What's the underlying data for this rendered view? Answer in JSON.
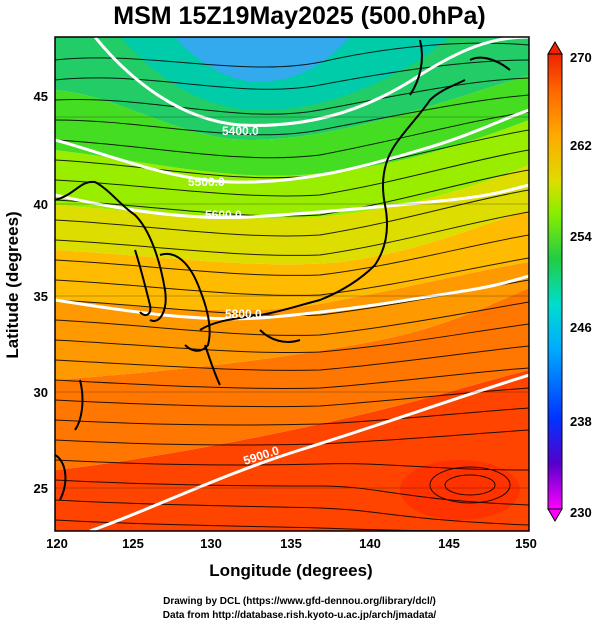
{
  "title": "MSM 15Z19May2025 (500.0hPa)",
  "xaxis": {
    "label": "Longitude (degrees)",
    "ticks": [
      "120",
      "125",
      "130",
      "135",
      "140",
      "145",
      "150"
    ],
    "range": [
      120,
      150
    ]
  },
  "yaxis": {
    "label": "Latitude  (degrees)",
    "ticks": [
      "25",
      "30",
      "35",
      "40",
      "45"
    ],
    "range": [
      22.4,
      47.6
    ]
  },
  "colorbar": {
    "ticks": [
      "270",
      "262",
      "254",
      "246",
      "238",
      "230"
    ],
    "range": [
      230,
      270
    ],
    "colors": [
      "#ff00ff",
      "#3300cc",
      "#0044ff",
      "#00aaff",
      "#00ddcc",
      "#22cc44",
      "#88ee00",
      "#dddd00",
      "#ffaa00",
      "#ff6600",
      "#ee2200"
    ]
  },
  "contours": [
    {
      "label": "5400.0"
    },
    {
      "label": "5500.0"
    },
    {
      "label": "5600.0"
    },
    {
      "label": "5800.0"
    },
    {
      "label": "5900.0"
    }
  ],
  "footer": {
    "line1": "Drawing by DCL (https://www.gfd-dennou.org/library/dcl/)",
    "line2": "Data from http://database.rish.kyoto-u.ac.jp/arch/jmadata/"
  }
}
